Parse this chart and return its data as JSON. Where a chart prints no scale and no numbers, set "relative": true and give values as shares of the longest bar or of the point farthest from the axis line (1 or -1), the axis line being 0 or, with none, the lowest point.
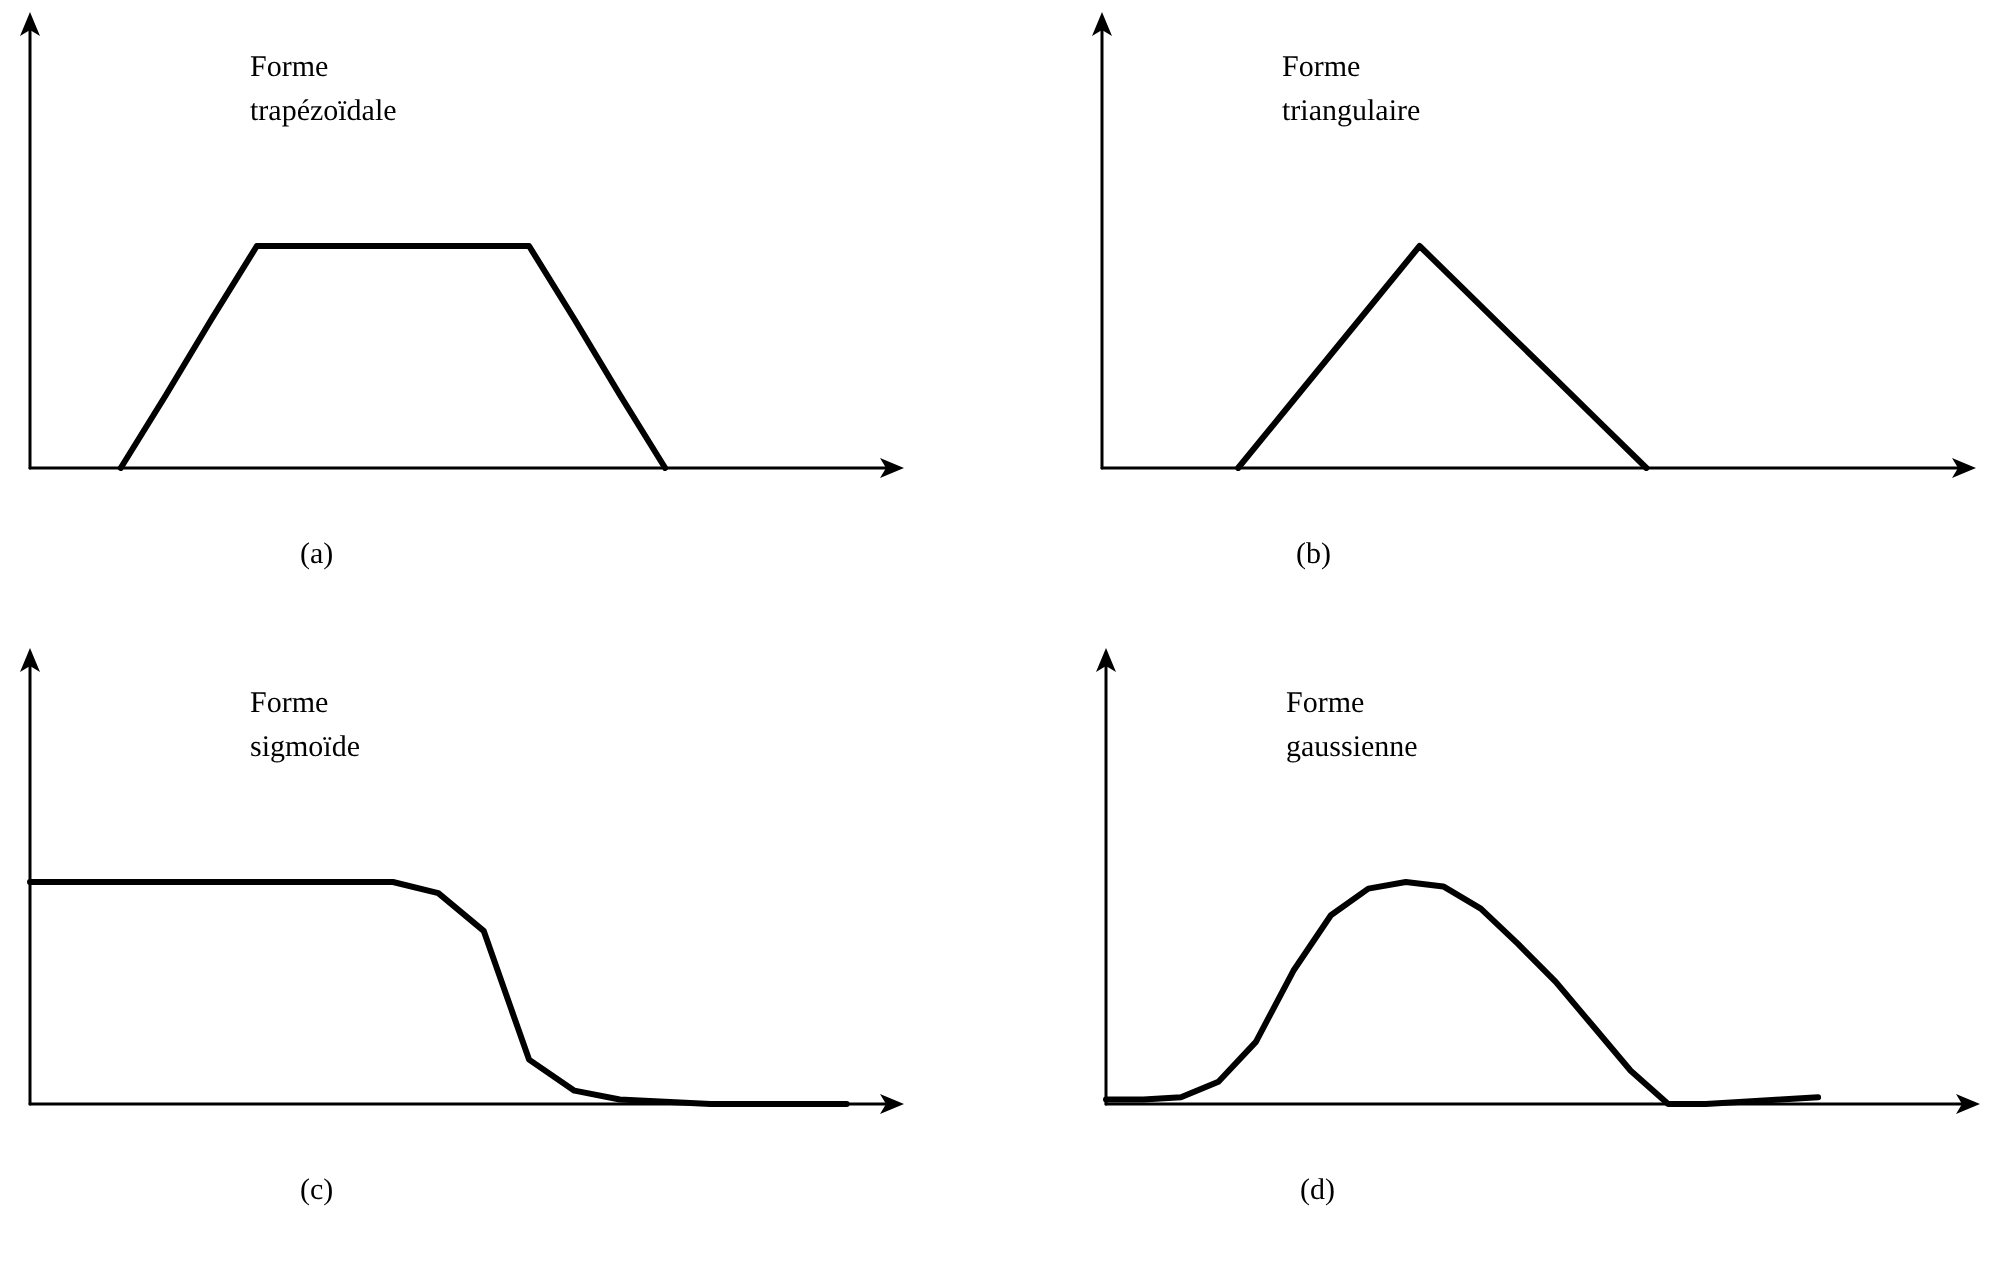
{
  "chart_data": [
    {
      "type": "line",
      "title": "Forme\ntrapézoïdale",
      "annotations": [
        "(a)"
      ],
      "relative": true,
      "categories": [
        null,
        null,
        null,
        null,
        null,
        null,
        null,
        null,
        null,
        null,
        null,
        null,
        null,
        null,
        null,
        null,
        null,
        null,
        null,
        null
      ],
      "series": [
        {
          "color": "#000000",
          "values": [
            null,
            null,
            0,
            0.33,
            0.67,
            1,
            1,
            1,
            1,
            1,
            1,
            1,
            0.67,
            0.33,
            0,
            null,
            null,
            null,
            null,
            null
          ]
        }
      ],
      "marker": "none",
      "line_style": "solid"
    },
    {
      "type": "line",
      "title": "Forme\ntriangulaire",
      "annotations": [
        "(b)"
      ],
      "relative": true,
      "categories": [
        null,
        null,
        null,
        null,
        null,
        null,
        null,
        null,
        null,
        null,
        null,
        null,
        null,
        null,
        null,
        null,
        null,
        null,
        null,
        null
      ],
      "series": [
        {
          "color": "#000000",
          "values": [
            null,
            null,
            null,
            0,
            0.25,
            0.5,
            0.75,
            1,
            0.8,
            0.6,
            0.4,
            0.2,
            0,
            null,
            null,
            null,
            null,
            null,
            null,
            null
          ]
        }
      ],
      "marker": "none",
      "line_style": "solid"
    },
    {
      "type": "line",
      "title": "Forme\nsigmoïde",
      "annotations": [
        "(c)"
      ],
      "relative": true,
      "categories": [
        null,
        null,
        null,
        null,
        null,
        null,
        null,
        null,
        null,
        null,
        null,
        null,
        null,
        null,
        null,
        null,
        null,
        null,
        null,
        null
      ],
      "series": [
        {
          "color": "#000000",
          "values": [
            1,
            1,
            1,
            1,
            1,
            1,
            1,
            1,
            1,
            0.95,
            0.78,
            0.2,
            0.06,
            0.02,
            0.01,
            0,
            0,
            0,
            0,
            null
          ]
        }
      ],
      "marker": "none",
      "line_style": "solid"
    },
    {
      "type": "line",
      "title": "Forme\ngaussienne",
      "annotations": [
        "(d)"
      ],
      "relative": true,
      "categories": [
        null,
        null,
        null,
        null,
        null,
        null,
        null,
        null,
        null,
        null,
        null,
        null,
        null,
        null,
        null,
        null,
        null,
        null,
        null,
        null,
        null,
        null,
        null,
        null
      ],
      "series": [
        {
          "color": "#000000",
          "values": [
            0.02,
            0.02,
            0.03,
            0.1,
            0.28,
            0.6,
            0.85,
            0.97,
            1,
            0.98,
            0.88,
            0.72,
            0.55,
            0.35,
            0.15,
            0,
            0,
            0.01,
            0.02,
            0.03,
            null,
            null,
            null,
            null
          ]
        }
      ],
      "marker": "none",
      "line_style": "solid"
    }
  ]
}
